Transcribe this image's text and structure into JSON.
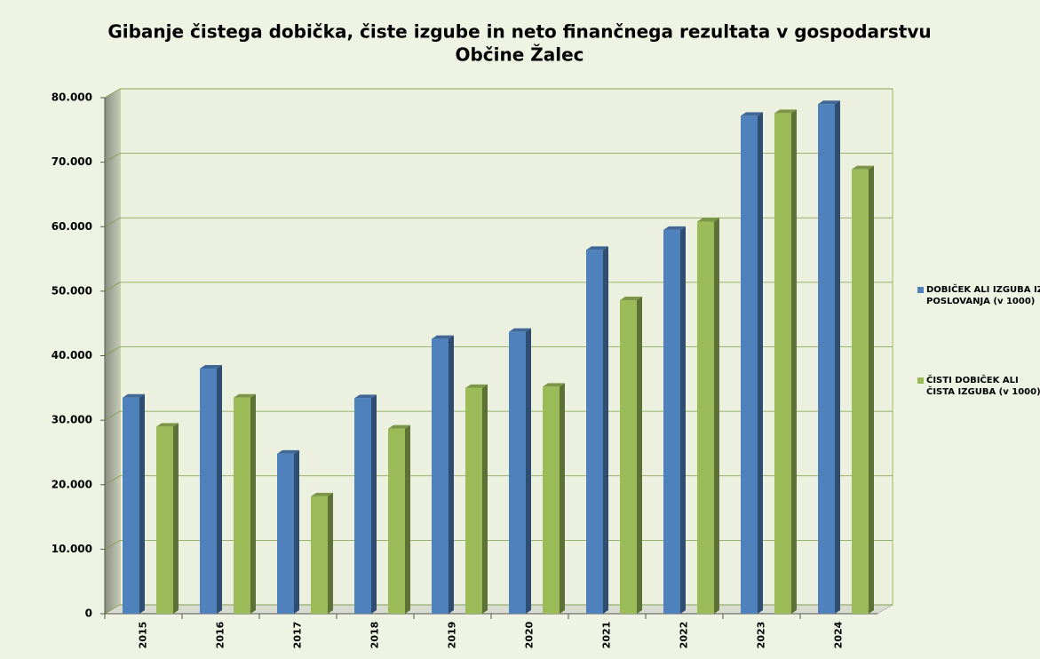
{
  "chart_data": {
    "type": "bar3d",
    "title": [
      "Gibanje čistega dobička, čiste izgube in neto finančnega rezultata v gospodarstvu",
      "Občine Žalec"
    ],
    "categories": [
      "2015",
      "2016",
      "2017",
      "2018",
      "2019",
      "2020",
      "2021",
      "2022",
      "2023",
      "2024"
    ],
    "series": [
      {
        "name": "DOBIČEK ALI IZGUBA IZ POSLOVANJA (v 1000)",
        "color": "#4f81bd",
        "values": [
          33500,
          38000,
          24800,
          33400,
          42600,
          43700,
          56400,
          59500,
          77200,
          79000
        ]
      },
      {
        "name": "ČISTI DOBIČEK ALI ČISTA IZGUBA (v 1000)",
        "color": "#9bbb59",
        "values": [
          29000,
          33500,
          18200,
          28700,
          35000,
          35200,
          48600,
          60800,
          77600,
          68900
        ]
      }
    ],
    "ylim": [
      0,
      80000
    ],
    "yticks": [
      0,
      {
        "value": 10000,
        "label": "10.000"
      },
      {
        "value": 20000,
        "label": "20.000"
      },
      {
        "value": 30000,
        "label": "30.000"
      },
      {
        "value": 40000,
        "label": "40.000"
      },
      {
        "value": 50000,
        "label": "50.000"
      },
      {
        "value": 60000,
        "label": "60.000"
      },
      {
        "value": 70000,
        "label": "70.000"
      },
      {
        "value": 80000,
        "label": "80.000"
      }
    ],
    "grid": true,
    "legend": "right"
  }
}
